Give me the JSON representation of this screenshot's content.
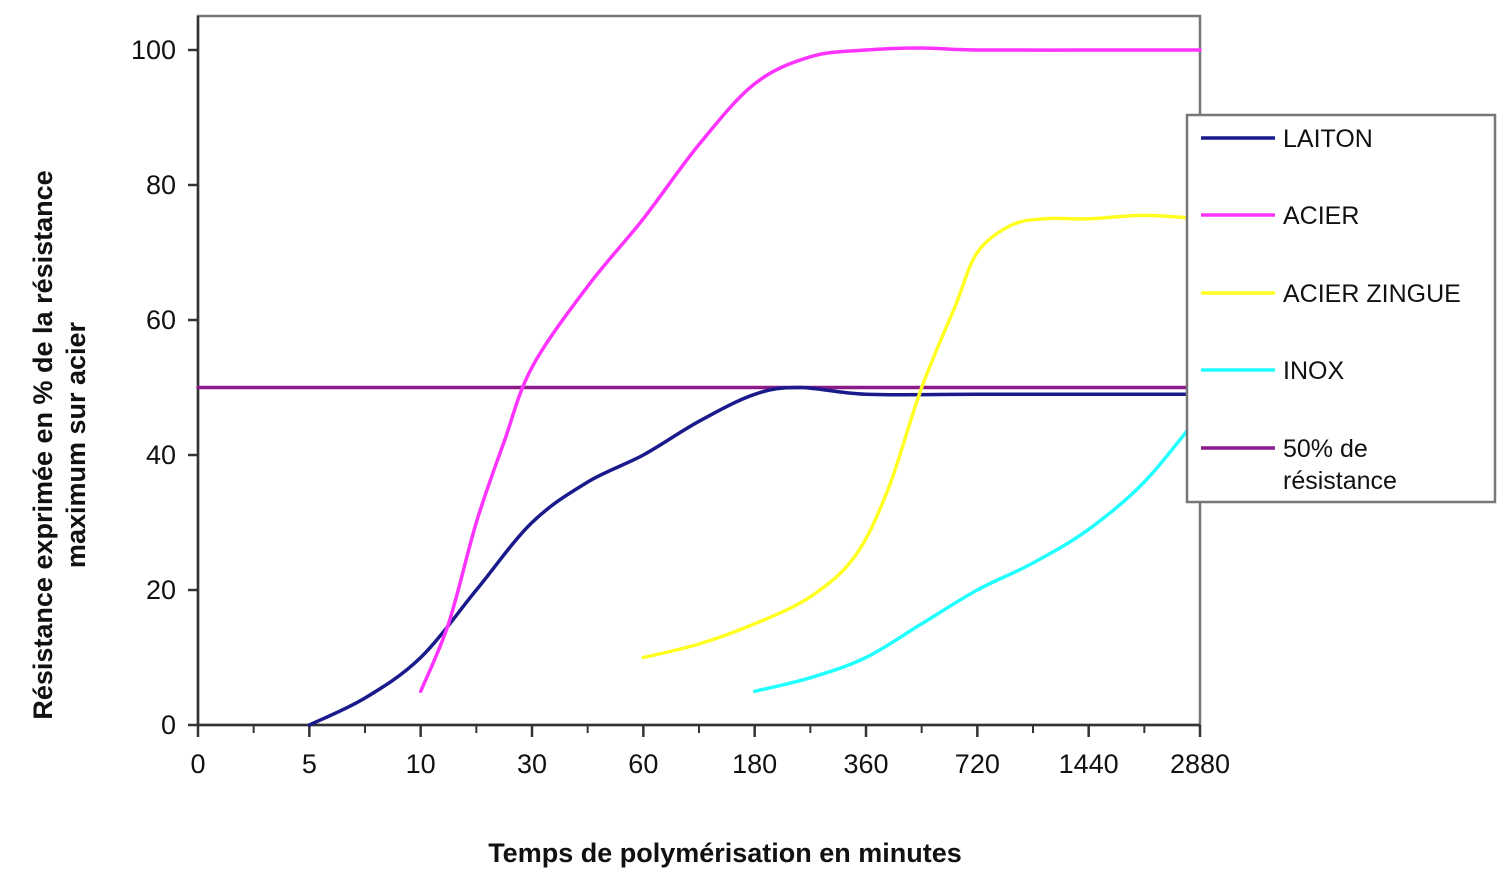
{
  "chart_data": {
    "type": "line",
    "title": "",
    "xlabel": "Temps de polymérisation en minutes",
    "ylabel_lines": [
      "Résistance exprimée en % de la résistance",
      "maximum sur acier"
    ],
    "x_scale": "categorical",
    "categories": [
      "0",
      "5",
      "10",
      "30",
      "60",
      "180",
      "360",
      "720",
      "1440",
      "2880"
    ],
    "ylim": [
      0,
      100
    ],
    "yticks": [
      0,
      20,
      40,
      60,
      80,
      100
    ],
    "grid": false,
    "legend_position": "right",
    "series": [
      {
        "name": "LAITON",
        "color": "#1a1a8c",
        "points": [
          [
            1,
            0
          ],
          [
            1.5,
            4
          ],
          [
            2,
            10
          ],
          [
            2.5,
            20
          ],
          [
            3,
            30
          ],
          [
            3.5,
            36
          ],
          [
            4,
            40
          ],
          [
            4.5,
            45
          ],
          [
            5,
            49
          ],
          [
            5.4,
            50
          ],
          [
            6,
            49
          ],
          [
            7,
            49
          ],
          [
            8,
            49
          ],
          [
            9,
            49
          ]
        ]
      },
      {
        "name": "ACIER",
        "color": "#ff33ff",
        "points": [
          [
            2,
            5
          ],
          [
            2.25,
            15
          ],
          [
            2.5,
            30
          ],
          [
            2.75,
            42
          ],
          [
            3,
            53
          ],
          [
            3.5,
            65
          ],
          [
            4,
            75
          ],
          [
            4.5,
            86
          ],
          [
            5,
            95
          ],
          [
            5.5,
            99
          ],
          [
            6,
            100
          ],
          [
            6.5,
            100.3
          ],
          [
            7,
            100
          ],
          [
            8,
            100
          ],
          [
            9,
            100
          ]
        ]
      },
      {
        "name": "ACIER ZINGUE",
        "color": "#ffff22",
        "points": [
          [
            4,
            10
          ],
          [
            4.5,
            12
          ],
          [
            5,
            15
          ],
          [
            5.5,
            19
          ],
          [
            5.9,
            25
          ],
          [
            6.2,
            35
          ],
          [
            6.5,
            50
          ],
          [
            6.8,
            62
          ],
          [
            7,
            70
          ],
          [
            7.3,
            74
          ],
          [
            7.6,
            75
          ],
          [
            8,
            75
          ],
          [
            8.5,
            75.5
          ],
          [
            9,
            75
          ]
        ]
      },
      {
        "name": "INOX",
        "color": "#22ffff",
        "points": [
          [
            5,
            5
          ],
          [
            5.5,
            7
          ],
          [
            6,
            10
          ],
          [
            6.5,
            15
          ],
          [
            7,
            20
          ],
          [
            7.5,
            24
          ],
          [
            8,
            29
          ],
          [
            8.5,
            36
          ],
          [
            9,
            46
          ]
        ]
      },
      {
        "name": "50% de résistance",
        "name_lines": [
          "50% de",
          "résistance"
        ],
        "color": "#8b1a8b",
        "points": [
          [
            0,
            50
          ],
          [
            9,
            50
          ]
        ]
      }
    ]
  }
}
